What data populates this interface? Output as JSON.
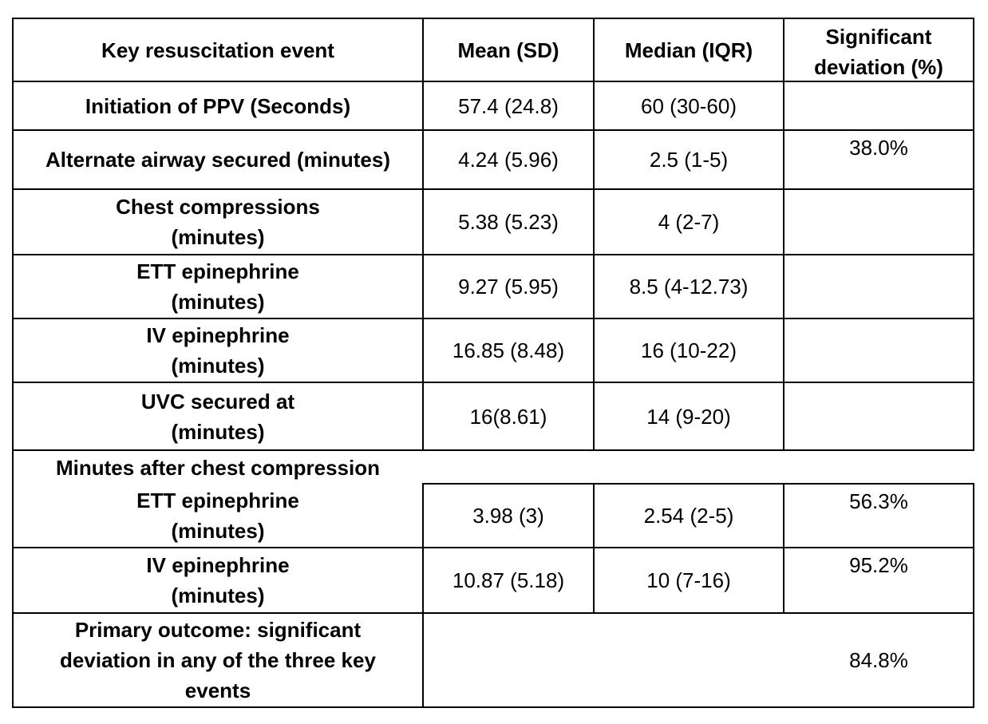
{
  "header": {
    "event": "Key resuscitation event",
    "mean": "Mean (SD)",
    "median": "Median (IQR)",
    "sig_line1": "Significant",
    "sig_line2": "deviation (%)"
  },
  "rows": [
    {
      "label": [
        "Initiation of PPV (Seconds)"
      ],
      "mean": "57.4 (24.8)",
      "median": "60 (30-60)"
    },
    {
      "label": [
        "Alternate airway secured (minutes)"
      ],
      "mean": "4.24 (5.96)",
      "median": "2.5 (1-5)",
      "sig": "38.0%"
    },
    {
      "label": [
        "Chest compressions",
        "(minutes)"
      ],
      "mean": "5.38 (5.23)",
      "median": "4 (2-7)"
    },
    {
      "label": [
        "ETT epinephrine",
        "(minutes)"
      ],
      "mean": "9.27 (5.95)",
      "median": "8.5 (4-12.73)"
    },
    {
      "label": [
        "IV epinephrine",
        "(minutes)"
      ],
      "mean": "16.85 (8.48)",
      "median": "16 (10-22)"
    },
    {
      "label": [
        "UVC secured at",
        "(minutes)"
      ],
      "mean": "16(8.61)",
      "median": "14 (9-20)"
    }
  ],
  "section": "Minutes after chest compression",
  "rows2": [
    {
      "label": [
        "ETT epinephrine",
        "(minutes)"
      ],
      "mean": "3.98 (3)",
      "median": "2.54 (2-5)",
      "sig": "56.3%"
    },
    {
      "label": [
        "IV epinephrine",
        "(minutes)"
      ],
      "mean": "10.87 (5.18)",
      "median": "10 (7-16)",
      "sig": "95.2%"
    }
  ],
  "primary": {
    "label": [
      "Primary outcome: significant",
      "deviation in any of the three key",
      "events"
    ],
    "sig": "84.8%"
  }
}
